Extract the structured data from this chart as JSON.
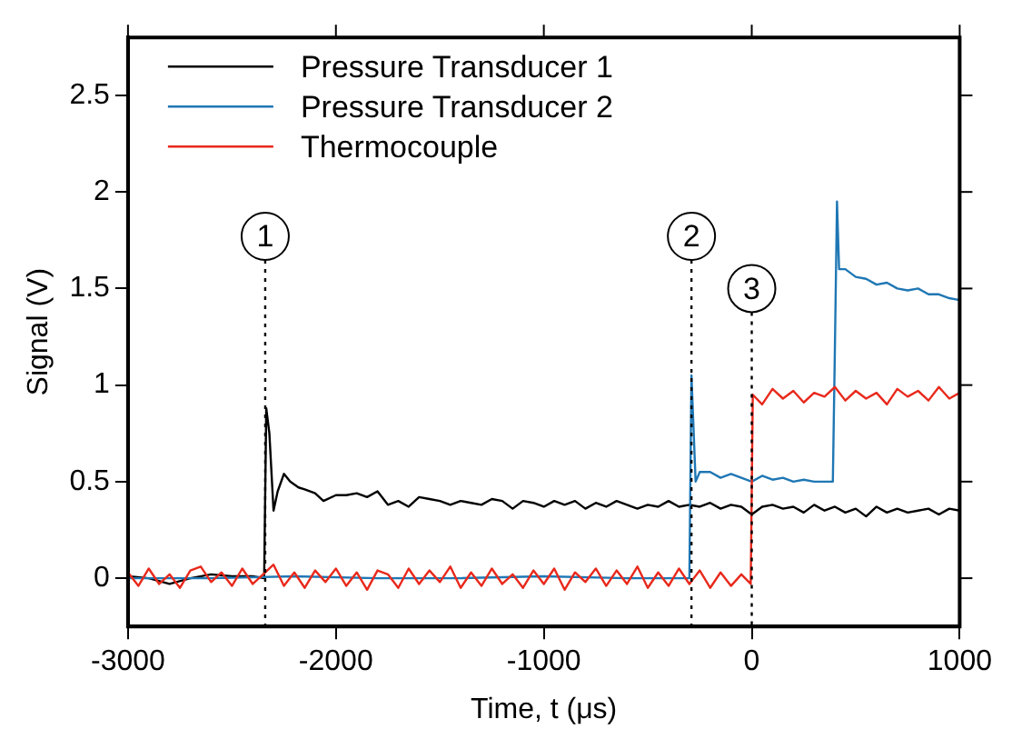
{
  "chart_data": {
    "type": "line",
    "xlabel": "Time, t (μs)",
    "ylabel": "Signal (V)",
    "xlim": [
      -3000,
      1000
    ],
    "ylim": [
      -0.25,
      2.8
    ],
    "xticks": [
      -3000,
      -2000,
      -1000,
      0,
      1000
    ],
    "yticks": [
      0,
      0.5,
      1,
      1.5,
      2,
      2.5
    ],
    "grid": false,
    "legend": "top left",
    "marker": "none",
    "line_style": "solid",
    "ref_lines": [
      {
        "axis": "x",
        "value": -2340,
        "line_style": "dotted",
        "color": "#000000"
      },
      {
        "axis": "x",
        "value": -290,
        "line_style": "dotted",
        "color": "#000000"
      },
      {
        "axis": "x",
        "value": 0,
        "line_style": "dotted",
        "color": "#000000"
      }
    ],
    "annotations": [
      {
        "text": "1",
        "x": -2340,
        "y": 1.77
      },
      {
        "text": "2",
        "x": -290,
        "y": 1.77
      },
      {
        "text": "3",
        "x": 0,
        "y": 1.5
      }
    ],
    "series": [
      {
        "name": "Pressure Transducer 1",
        "color": "#000000",
        "x": [
          -3000,
          -2900,
          -2800,
          -2700,
          -2600,
          -2500,
          -2400,
          -2345,
          -2335,
          -2320,
          -2300,
          -2280,
          -2250,
          -2220,
          -2180,
          -2150,
          -2100,
          -2060,
          -2000,
          -1950,
          -1900,
          -1850,
          -1800,
          -1750,
          -1700,
          -1650,
          -1600,
          -1550,
          -1500,
          -1450,
          -1400,
          -1350,
          -1300,
          -1250,
          -1200,
          -1150,
          -1100,
          -1050,
          -1000,
          -950,
          -900,
          -850,
          -800,
          -750,
          -700,
          -650,
          -600,
          -550,
          -500,
          -450,
          -400,
          -350,
          -300,
          -250,
          -200,
          -150,
          -100,
          -50,
          0,
          50,
          100,
          150,
          200,
          250,
          300,
          350,
          400,
          450,
          500,
          550,
          600,
          650,
          700,
          750,
          800,
          850,
          900,
          950,
          1000
        ],
        "values": [
          0.01,
          0.0,
          -0.03,
          0.0,
          0.02,
          0.01,
          0.01,
          0.0,
          0.88,
          0.75,
          0.35,
          0.45,
          0.54,
          0.5,
          0.47,
          0.46,
          0.44,
          0.4,
          0.43,
          0.43,
          0.44,
          0.42,
          0.45,
          0.38,
          0.4,
          0.37,
          0.42,
          0.41,
          0.4,
          0.38,
          0.4,
          0.39,
          0.38,
          0.41,
          0.4,
          0.36,
          0.4,
          0.39,
          0.37,
          0.4,
          0.38,
          0.4,
          0.36,
          0.39,
          0.37,
          0.4,
          0.38,
          0.36,
          0.38,
          0.37,
          0.4,
          0.37,
          0.38,
          0.37,
          0.39,
          0.36,
          0.38,
          0.37,
          0.33,
          0.37,
          0.38,
          0.36,
          0.37,
          0.34,
          0.38,
          0.35,
          0.37,
          0.34,
          0.36,
          0.32,
          0.37,
          0.34,
          0.36,
          0.34,
          0.35,
          0.36,
          0.33,
          0.36,
          0.35
        ]
      },
      {
        "name": "Pressure Transducer 2",
        "color": "#1f77b4",
        "x": [
          -3000,
          -2600,
          -2200,
          -1800,
          -1400,
          -1000,
          -600,
          -300,
          -290,
          -270,
          -250,
          -200,
          -150,
          -100,
          -50,
          0,
          50,
          100,
          150,
          200,
          250,
          300,
          390,
          400,
          410,
          420,
          450,
          500,
          550,
          600,
          650,
          700,
          750,
          800,
          850,
          900,
          950,
          1000
        ],
        "values": [
          0.0,
          0.0,
          0.01,
          0.0,
          0.0,
          0.01,
          0.0,
          0.0,
          1.05,
          0.5,
          0.55,
          0.55,
          0.52,
          0.54,
          0.52,
          0.5,
          0.53,
          0.51,
          0.52,
          0.5,
          0.51,
          0.5,
          0.5,
          1.2,
          1.95,
          1.6,
          1.6,
          1.56,
          1.55,
          1.52,
          1.53,
          1.5,
          1.49,
          1.5,
          1.47,
          1.47,
          1.45,
          1.44
        ]
      },
      {
        "name": "Thermocouple",
        "color": "#e8291c",
        "x": [
          -3000,
          -2950,
          -2900,
          -2850,
          -2800,
          -2750,
          -2700,
          -2650,
          -2600,
          -2550,
          -2500,
          -2450,
          -2400,
          -2350,
          -2300,
          -2250,
          -2200,
          -2150,
          -2100,
          -2050,
          -2000,
          -1950,
          -1900,
          -1850,
          -1800,
          -1750,
          -1700,
          -1650,
          -1600,
          -1550,
          -1500,
          -1450,
          -1400,
          -1350,
          -1300,
          -1250,
          -1200,
          -1150,
          -1100,
          -1050,
          -1000,
          -950,
          -900,
          -850,
          -800,
          -750,
          -700,
          -650,
          -600,
          -550,
          -500,
          -450,
          -400,
          -350,
          -300,
          -250,
          -200,
          -150,
          -100,
          -50,
          -5,
          5,
          50,
          100,
          150,
          200,
          250,
          300,
          350,
          400,
          450,
          500,
          550,
          600,
          650,
          700,
          750,
          800,
          850,
          900,
          950,
          1000
        ],
        "values": [
          0.03,
          -0.04,
          0.05,
          -0.03,
          0.02,
          -0.05,
          0.04,
          0.06,
          -0.02,
          0.03,
          -0.04,
          0.05,
          -0.03,
          0.02,
          0.07,
          -0.04,
          0.03,
          -0.05,
          0.04,
          -0.02,
          0.05,
          -0.04,
          0.03,
          -0.06,
          0.04,
          0.02,
          -0.05,
          0.05,
          -0.03,
          0.04,
          -0.02,
          0.06,
          -0.05,
          0.03,
          -0.04,
          0.05,
          -0.03,
          0.02,
          -0.05,
          0.04,
          -0.03,
          0.05,
          -0.06,
          0.03,
          -0.02,
          0.05,
          -0.04,
          0.04,
          -0.03,
          0.06,
          -0.05,
          0.03,
          -0.04,
          0.05,
          -0.03,
          0.04,
          -0.05,
          0.03,
          -0.04,
          0.02,
          -0.03,
          0.95,
          0.9,
          0.98,
          0.93,
          0.97,
          0.91,
          0.96,
          0.94,
          0.99,
          0.92,
          0.97,
          0.93,
          0.96,
          0.9,
          0.98,
          0.94,
          0.97,
          0.92,
          0.99,
          0.93,
          0.96
        ]
      }
    ]
  }
}
